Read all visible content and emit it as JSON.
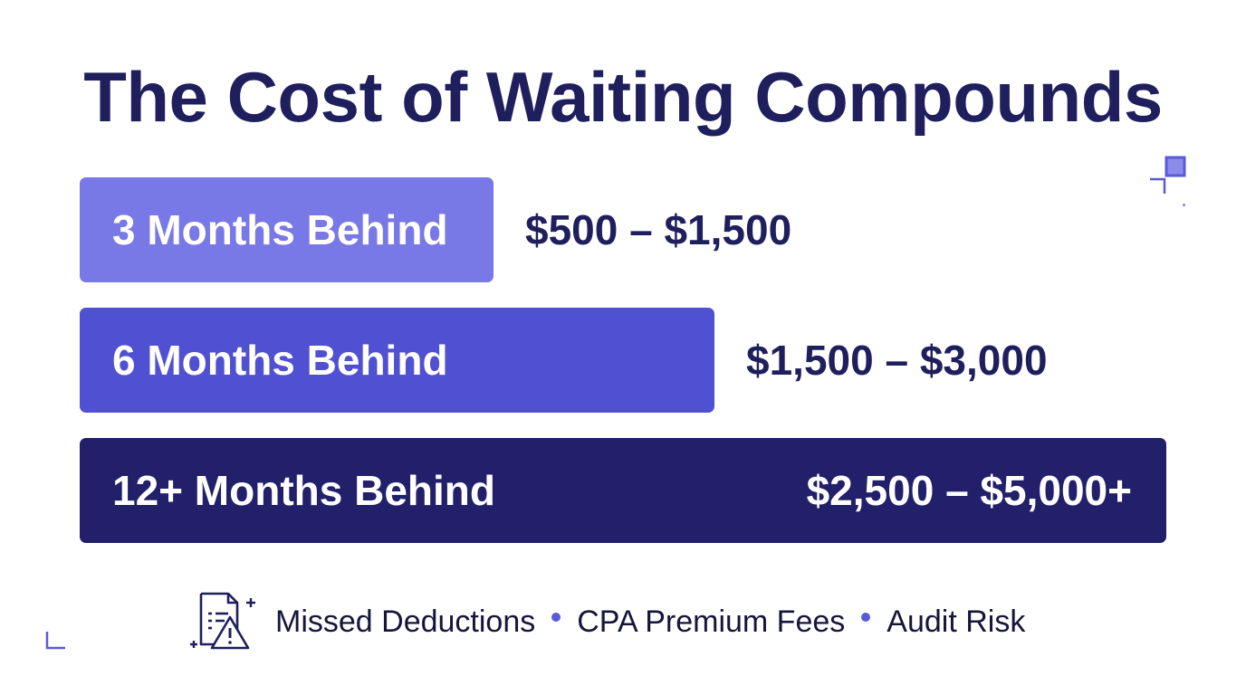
{
  "title": "The Cost of Waiting Compounds",
  "colors": {
    "title": "#1f1f5e",
    "bar_3": "#7878e6",
    "bar_6": "#5050d2",
    "bar_12": "#22206a",
    "value_dark": "#1f1f5e",
    "dot": "#5a5ad8"
  },
  "chart_data": {
    "type": "bar",
    "orientation": "horizontal",
    "categories": [
      "3 Months Behind",
      "6 Months Behind",
      "12+ Months Behind"
    ],
    "value_labels": [
      "$500 – $1,500",
      "$1,500 – $3,000",
      "$2,500 – $5,000+"
    ],
    "series": [
      {
        "ranges": [
          [
            500,
            1500
          ],
          [
            1500,
            3000
          ],
          [
            2500,
            5000
          ]
        ]
      }
    ]
  },
  "footer": {
    "icon": "document-warning-icon",
    "items": [
      "Missed Deductions",
      "CPA Premium Fees",
      "Audit Risk"
    ]
  }
}
